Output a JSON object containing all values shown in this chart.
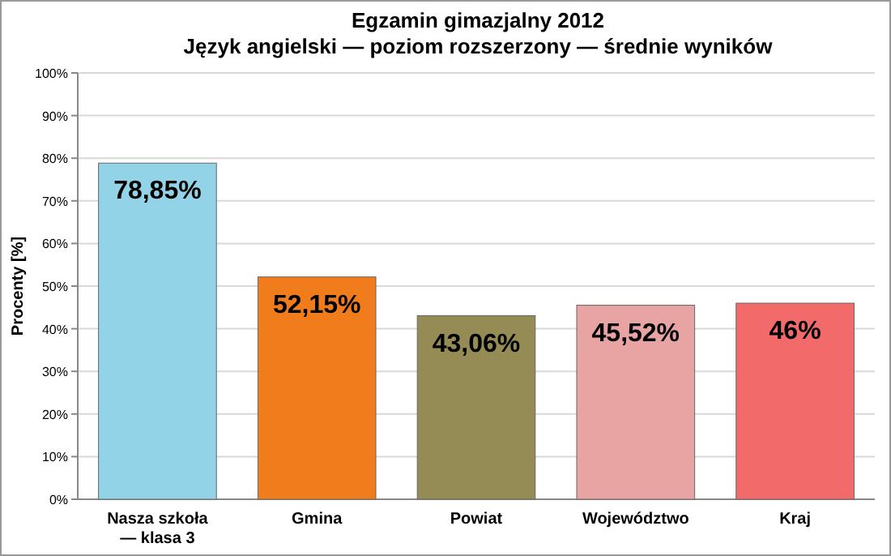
{
  "chart_data": {
    "type": "bar",
    "title": "Egzamin gimazjalny 2012",
    "subtitle": "Język angielski — poziom rozszerzony — średnie wyników",
    "ylabel": "Procenty [%]",
    "categories": [
      "Nasza szkoła\n— klasa 3",
      "Gmina",
      "Powiat",
      "Województwo",
      "Kraj"
    ],
    "values": [
      78.85,
      52.15,
      43.06,
      45.52,
      46
    ],
    "colors": [
      "#92d3e8",
      "#f07c1c",
      "#958b55",
      "#e8a3a3",
      "#f26a6a"
    ],
    "value_labels": [
      "78,85%",
      "52,15%",
      "43,06%",
      "45,52%",
      "46%"
    ],
    "ylim": [
      0,
      100
    ],
    "yticks": [
      {
        "value": 0,
        "label": "0%"
      },
      {
        "value": 10,
        "label": "10%"
      },
      {
        "value": 20,
        "label": "20%"
      },
      {
        "value": 30,
        "label": "30%"
      },
      {
        "value": 40,
        "label": "40%"
      },
      {
        "value": 50,
        "label": "50%"
      },
      {
        "value": 60,
        "label": "60%"
      },
      {
        "value": 70,
        "label": "70%"
      },
      {
        "value": 80,
        "label": "80%"
      },
      {
        "value": 90,
        "label": "90%"
      },
      {
        "value": 100,
        "label": "100%"
      }
    ],
    "grid": true
  }
}
